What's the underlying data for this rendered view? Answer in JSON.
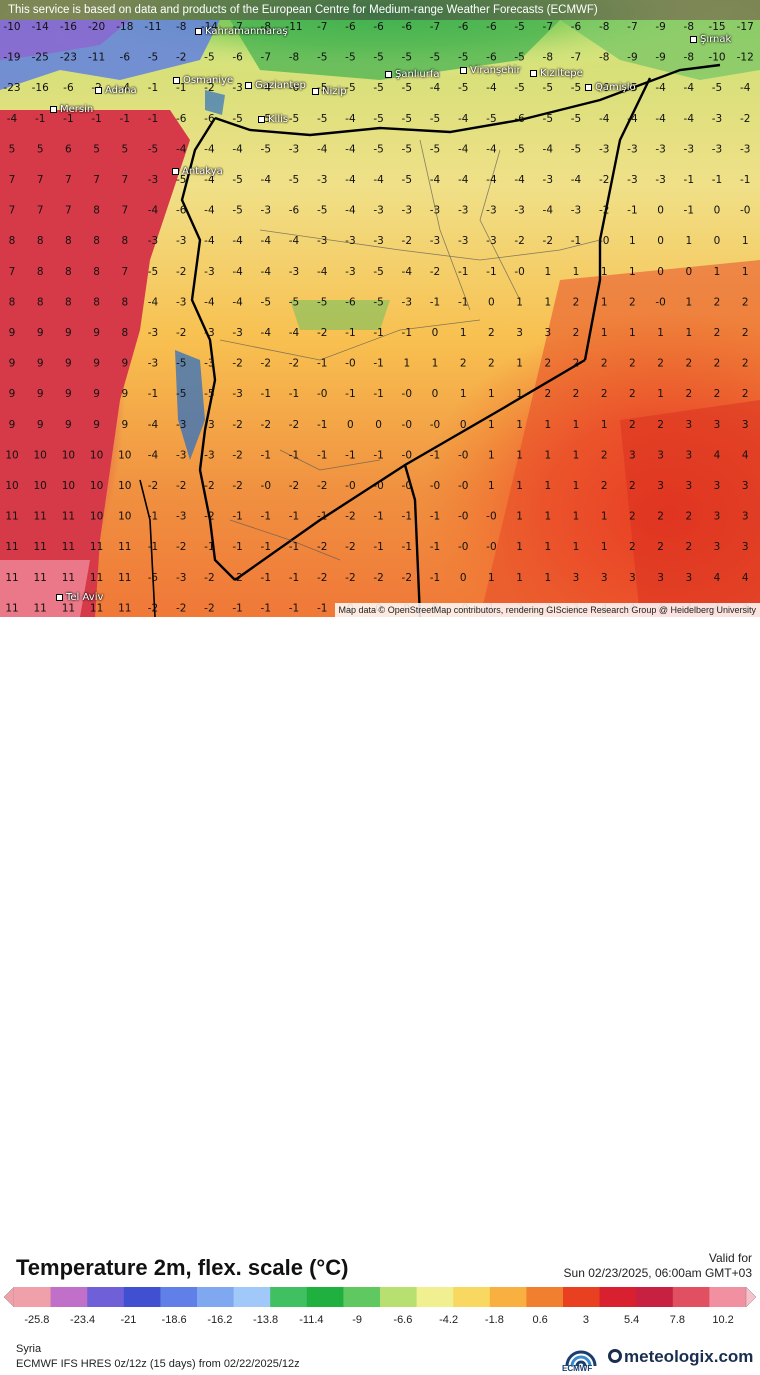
{
  "top_notice": "This service is based on data and products of the European Centre for Medium-range Weather Forecasts (ECMWF)",
  "attribution": "Map data © OpenStreetMap contributors, rendering GIScience Research Group @ Heidelberg University",
  "title": "Temperature 2m, flex. scale (°C)",
  "valid_label": "Valid for",
  "valid_date": "Sun 02/23/2025, 06:00am GMT+03",
  "region": "Syria",
  "model_info": "ECMWF IFS HRES 0z/12z (15 days) from  02/22/2025/12z",
  "ecmwf_label": "ECMWF",
  "brand": "meteologix.com",
  "icons": [
    "ecmwf-logo-icon",
    "meteologix-logo-icon"
  ],
  "scale": {
    "unit": "°C",
    "ticks": [
      "-25.8",
      "-23.4",
      "-21",
      "-18.6",
      "-16.2",
      "-13.8",
      "-11.4",
      "-9",
      "-6.6",
      "-4.2",
      "-1.8",
      "0.6",
      "3",
      "5.4",
      "7.8",
      "10.2"
    ],
    "min": -27,
    "max": 11.4,
    "colors": [
      "#f0a0a8",
      "#c070c8",
      "#7060d8",
      "#4050d0",
      "#6080e8",
      "#80a8f0",
      "#a0c8f8",
      "#40c060",
      "#20b040",
      "#60c860",
      "#b8e070",
      "#f0f090",
      "#f8d860",
      "#f8b040",
      "#f08030",
      "#e84020",
      "#d82030",
      "#c82040",
      "#e05060",
      "#f090a0"
    ]
  },
  "cities": [
    {
      "name": "Kahramanmaraş"
    },
    {
      "name": "Şırnak"
    },
    {
      "name": "Osmaniye"
    },
    {
      "name": "Gaziantep"
    },
    {
      "name": "Adana"
    },
    {
      "name": "Nizip"
    },
    {
      "name": "Şanlıurfa"
    },
    {
      "name": "Viranşehir"
    },
    {
      "name": "Kızıltepe"
    },
    {
      "name": "Qamişlo"
    },
    {
      "name": "Mersin"
    },
    {
      "name": "Kilis"
    },
    {
      "name": "Antakya"
    },
    {
      "name": "Tel Aviv"
    }
  ],
  "temperature_grid": {
    "rows": [
      [
        "-10",
        "-14",
        "-16",
        "-20",
        "-18",
        "-11",
        "-8",
        "-14",
        "-7",
        "-8",
        "-11",
        "-7",
        "-6",
        "-6",
        "-6",
        "-7",
        "-6",
        "-6",
        "-5",
        "-7",
        "-6",
        "-8",
        "-7",
        "-9",
        "-8",
        "-15",
        "-17"
      ],
      [
        "-19",
        "-25",
        "-23",
        "-11",
        "-6",
        "-5",
        "-2",
        "-5",
        "-6",
        "-7",
        "-8",
        "-5",
        "-5",
        "-5",
        "-5",
        "-5",
        "-5",
        "-6",
        "-5",
        "-8",
        "-7",
        "-8",
        "-9",
        "-9",
        "-8",
        "-10",
        "-12"
      ],
      [
        "-23",
        "-16",
        "-6",
        "-2",
        "-4",
        "-1",
        "-1",
        "-2",
        "-3",
        "-4",
        "-6",
        "-5",
        "-5",
        "-5",
        "-5",
        "-4",
        "-5",
        "-4",
        "-5",
        "-5",
        "-5",
        "-6",
        "-5",
        "-4",
        "-4",
        "-5",
        "-4"
      ],
      [
        "-4",
        "-1",
        "-1",
        "-1",
        "-1",
        "-1",
        "-6",
        "-6",
        "-5",
        "-5",
        "-5",
        "-5",
        "-4",
        "-5",
        "-5",
        "-5",
        "-4",
        "-5",
        "-6",
        "-5",
        "-5",
        "-4",
        "-4",
        "-4",
        "-4",
        "-3",
        "-2"
      ],
      [
        "5",
        "5",
        "6",
        "5",
        "5",
        "-5",
        "-4",
        "-4",
        "-4",
        "-5",
        "-3",
        "-4",
        "-4",
        "-5",
        "-5",
        "-5",
        "-4",
        "-4",
        "-5",
        "-4",
        "-5",
        "-3",
        "-3",
        "-3",
        "-3",
        "-3",
        "-3"
      ],
      [
        "7",
        "7",
        "7",
        "7",
        "7",
        "-3",
        "-5",
        "-4",
        "-5",
        "-4",
        "-5",
        "-3",
        "-4",
        "-4",
        "-5",
        "-4",
        "-4",
        "-4",
        "-4",
        "-3",
        "-4",
        "-2",
        "-3",
        "-3",
        "-1",
        "-1",
        "-1"
      ],
      [
        "7",
        "7",
        "7",
        "8",
        "7",
        "-4",
        "-6",
        "-4",
        "-5",
        "-3",
        "-6",
        "-5",
        "-4",
        "-3",
        "-3",
        "-3",
        "-3",
        "-3",
        "-3",
        "-4",
        "-3",
        "-2",
        "-1",
        "0",
        "-1",
        "0",
        "-0"
      ],
      [
        "8",
        "8",
        "8",
        "8",
        "8",
        "-3",
        "-3",
        "-4",
        "-4",
        "-4",
        "-4",
        "-3",
        "-3",
        "-3",
        "-2",
        "-3",
        "-3",
        "-3",
        "-2",
        "-2",
        "-1",
        "-0",
        "1",
        "0",
        "1",
        "0",
        "1"
      ],
      [
        "7",
        "8",
        "8",
        "8",
        "7",
        "-5",
        "-2",
        "-3",
        "-4",
        "-4",
        "-3",
        "-4",
        "-3",
        "-5",
        "-4",
        "-2",
        "-1",
        "-1",
        "-0",
        "1",
        "1",
        "1",
        "1",
        "0",
        "0",
        "1",
        "1"
      ],
      [
        "8",
        "8",
        "8",
        "8",
        "8",
        "-4",
        "-3",
        "-4",
        "-4",
        "-5",
        "-5",
        "-5",
        "-6",
        "-5",
        "-3",
        "-1",
        "-1",
        "0",
        "1",
        "1",
        "2",
        "1",
        "2",
        "-0",
        "1",
        "2",
        "2"
      ],
      [
        "9",
        "9",
        "9",
        "9",
        "8",
        "-3",
        "-2",
        "-3",
        "-3",
        "-4",
        "-4",
        "-2",
        "-1",
        "-1",
        "-1",
        "0",
        "1",
        "2",
        "3",
        "3",
        "2",
        "1",
        "1",
        "1",
        "1",
        "2",
        "2"
      ],
      [
        "9",
        "9",
        "9",
        "9",
        "9",
        "-3",
        "-5",
        "-3",
        "-2",
        "-2",
        "-2",
        "-1",
        "-0",
        "-1",
        "1",
        "1",
        "2",
        "2",
        "1",
        "2",
        "2",
        "2",
        "2",
        "2",
        "2",
        "2",
        "2"
      ],
      [
        "9",
        "9",
        "9",
        "9",
        "9",
        "-1",
        "-5",
        "-5",
        "-3",
        "-1",
        "-1",
        "-0",
        "-1",
        "-1",
        "-0",
        "0",
        "1",
        "1",
        "1",
        "2",
        "2",
        "2",
        "2",
        "1",
        "2",
        "2",
        "2"
      ],
      [
        "9",
        "9",
        "9",
        "9",
        "9",
        "-4",
        "-3",
        "-3",
        "-2",
        "-2",
        "-2",
        "-1",
        "0",
        "0",
        "-0",
        "-0",
        "0",
        "1",
        "1",
        "1",
        "1",
        "1",
        "2",
        "2",
        "3",
        "3",
        "3"
      ],
      [
        "10",
        "10",
        "10",
        "10",
        "10",
        "-4",
        "-3",
        "-3",
        "-2",
        "-1",
        "-1",
        "-1",
        "-1",
        "-1",
        "-0",
        "-1",
        "-0",
        "1",
        "1",
        "1",
        "1",
        "2",
        "3",
        "3",
        "3",
        "4",
        "4"
      ],
      [
        "10",
        "10",
        "10",
        "10",
        "10",
        "-2",
        "-2",
        "-2",
        "-2",
        "-0",
        "-2",
        "-2",
        "-0",
        "-0",
        "-0",
        "-0",
        "-0",
        "1",
        "1",
        "1",
        "1",
        "2",
        "2",
        "3",
        "3",
        "3",
        "3"
      ],
      [
        "11",
        "11",
        "11",
        "10",
        "10",
        "-1",
        "-3",
        "-2",
        "-1",
        "-1",
        "-1",
        "-1",
        "-2",
        "-1",
        "-1",
        "-1",
        "-0",
        "-0",
        "1",
        "1",
        "1",
        "1",
        "2",
        "2",
        "2",
        "3",
        "3"
      ],
      [
        "11",
        "11",
        "11",
        "11",
        "11",
        "-1",
        "-2",
        "-1",
        "-1",
        "-1",
        "-1",
        "-2",
        "-2",
        "-1",
        "-1",
        "-1",
        "-0",
        "-0",
        "1",
        "1",
        "1",
        "1",
        "2",
        "2",
        "2",
        "3",
        "3"
      ],
      [
        "11",
        "11",
        "11",
        "11",
        "11",
        "-5",
        "-3",
        "-2",
        "-2",
        "-1",
        "-1",
        "-2",
        "-2",
        "-2",
        "-2",
        "-1",
        "0",
        "1",
        "1",
        "1",
        "3",
        "3",
        "3",
        "3",
        "3",
        "4",
        "4"
      ],
      [
        "11",
        "11",
        "11",
        "11",
        "11",
        "-2",
        "-2",
        "-2",
        "-1",
        "-1",
        "-1",
        "-1",
        "0",
        "0",
        "0",
        "0",
        "-0",
        "1",
        "2",
        "2",
        "3",
        "4",
        "4",
        "4",
        "4",
        "4",
        "4"
      ]
    ]
  }
}
